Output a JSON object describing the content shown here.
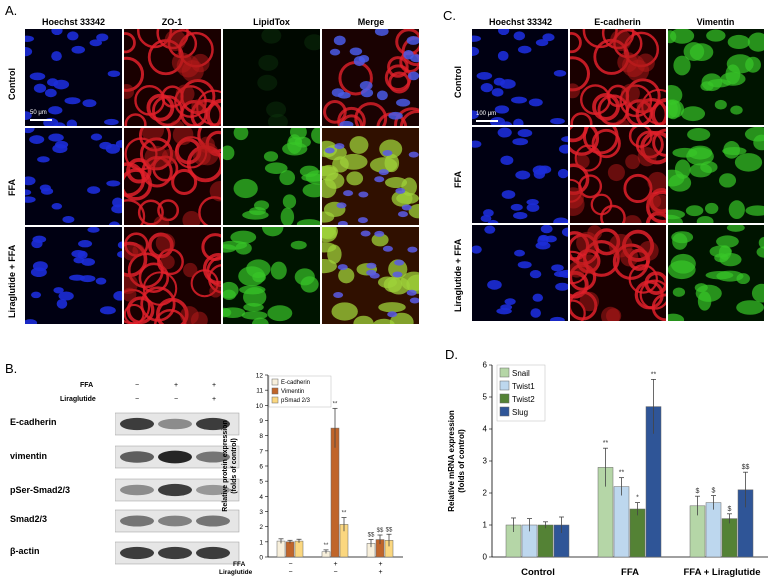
{
  "panel_a": {
    "letter": "A.",
    "columns": [
      "Hoechst 33342",
      "ZO-1",
      "LipidTox",
      "Merge"
    ],
    "rows": [
      "Control",
      "FFA",
      "Liraglutide + FFA"
    ],
    "scale_bar": "50 μm"
  },
  "panel_c": {
    "letter": "C.",
    "columns": [
      "Hoechst 33342",
      "E-cadherin",
      "Vimentin"
    ],
    "rows": [
      "Control",
      "FFA",
      "Liraglutide + FFA"
    ],
    "scale_bar": "100 μm"
  },
  "panel_b": {
    "letter": "B.",
    "treatments": {
      "ffa_label": "FFA",
      "lira_label": "Liraglutide",
      "ffa": [
        "−",
        "+",
        "+"
      ],
      "lira": [
        "−",
        "−",
        "+"
      ]
    },
    "blots": [
      "E-cadherin",
      "vimentin",
      "pSer-Smad2/3",
      "Smad2/3",
      "β-actin"
    ]
  },
  "panel_d": {
    "letter": "D."
  },
  "chart_data": [
    {
      "type": "bar",
      "panel": "B",
      "ylabel": "Relative protein expression (folds of control)",
      "ylim": [
        0,
        12
      ],
      "yticks": [
        0,
        1,
        2,
        3,
        4,
        5,
        6,
        7,
        8,
        9,
        10,
        11,
        12
      ],
      "treatment_rows": {
        "FFA": [
          "−",
          "+",
          "+"
        ],
        "Liraglutide": [
          "−",
          "−",
          "+"
        ]
      },
      "groups": 3,
      "series": [
        {
          "name": "E-cadherin",
          "color": "#f8f0dc",
          "values": [
            1.05,
            0.35,
            0.9
          ],
          "errors": [
            0.15,
            0.12,
            0.25
          ],
          "labels": [
            "",
            "**",
            "$$"
          ]
        },
        {
          "name": "Vimentin",
          "color": "#c0652a",
          "values": [
            1.0,
            8.5,
            1.15
          ],
          "errors": [
            0.1,
            1.3,
            0.3
          ],
          "labels": [
            "",
            "**",
            "$$"
          ]
        },
        {
          "name": "pSmad 2/3",
          "color": "#fbd77f",
          "values": [
            1.05,
            2.15,
            1.1
          ],
          "errors": [
            0.12,
            0.45,
            0.4
          ],
          "labels": [
            "",
            "**",
            "$$"
          ]
        }
      ],
      "legend_position": "top-left"
    },
    {
      "type": "bar",
      "panel": "D",
      "categories": [
        "Control",
        "FFA",
        "FFA + Liraglutide"
      ],
      "ylabel": "Relative mRNA expression (folds of control)",
      "ylim": [
        0,
        6
      ],
      "yticks": [
        0,
        1,
        2,
        3,
        4,
        5,
        6
      ],
      "series": [
        {
          "name": "Snail",
          "color": "#b5d6a7",
          "values": [
            1.0,
            2.8,
            1.6
          ],
          "errors": [
            0.22,
            0.6,
            0.3
          ],
          "labels": [
            "",
            "**",
            "$"
          ]
        },
        {
          "name": "Twist1",
          "color": "#bdd7ee",
          "values": [
            1.0,
            2.2,
            1.7
          ],
          "errors": [
            0.2,
            0.28,
            0.22
          ],
          "labels": [
            "",
            "**",
            "$"
          ]
        },
        {
          "name": "Twist2",
          "color": "#548235",
          "values": [
            1.0,
            1.5,
            1.2
          ],
          "errors": [
            0.1,
            0.2,
            0.15
          ],
          "labels": [
            "",
            "*",
            "$"
          ]
        },
        {
          "name": "Slug",
          "color": "#2f5597",
          "values": [
            1.0,
            4.7,
            2.1
          ],
          "errors": [
            0.25,
            0.85,
            0.55
          ],
          "labels": [
            "",
            "**",
            "$$"
          ]
        }
      ],
      "legend_position": "top-left"
    }
  ]
}
